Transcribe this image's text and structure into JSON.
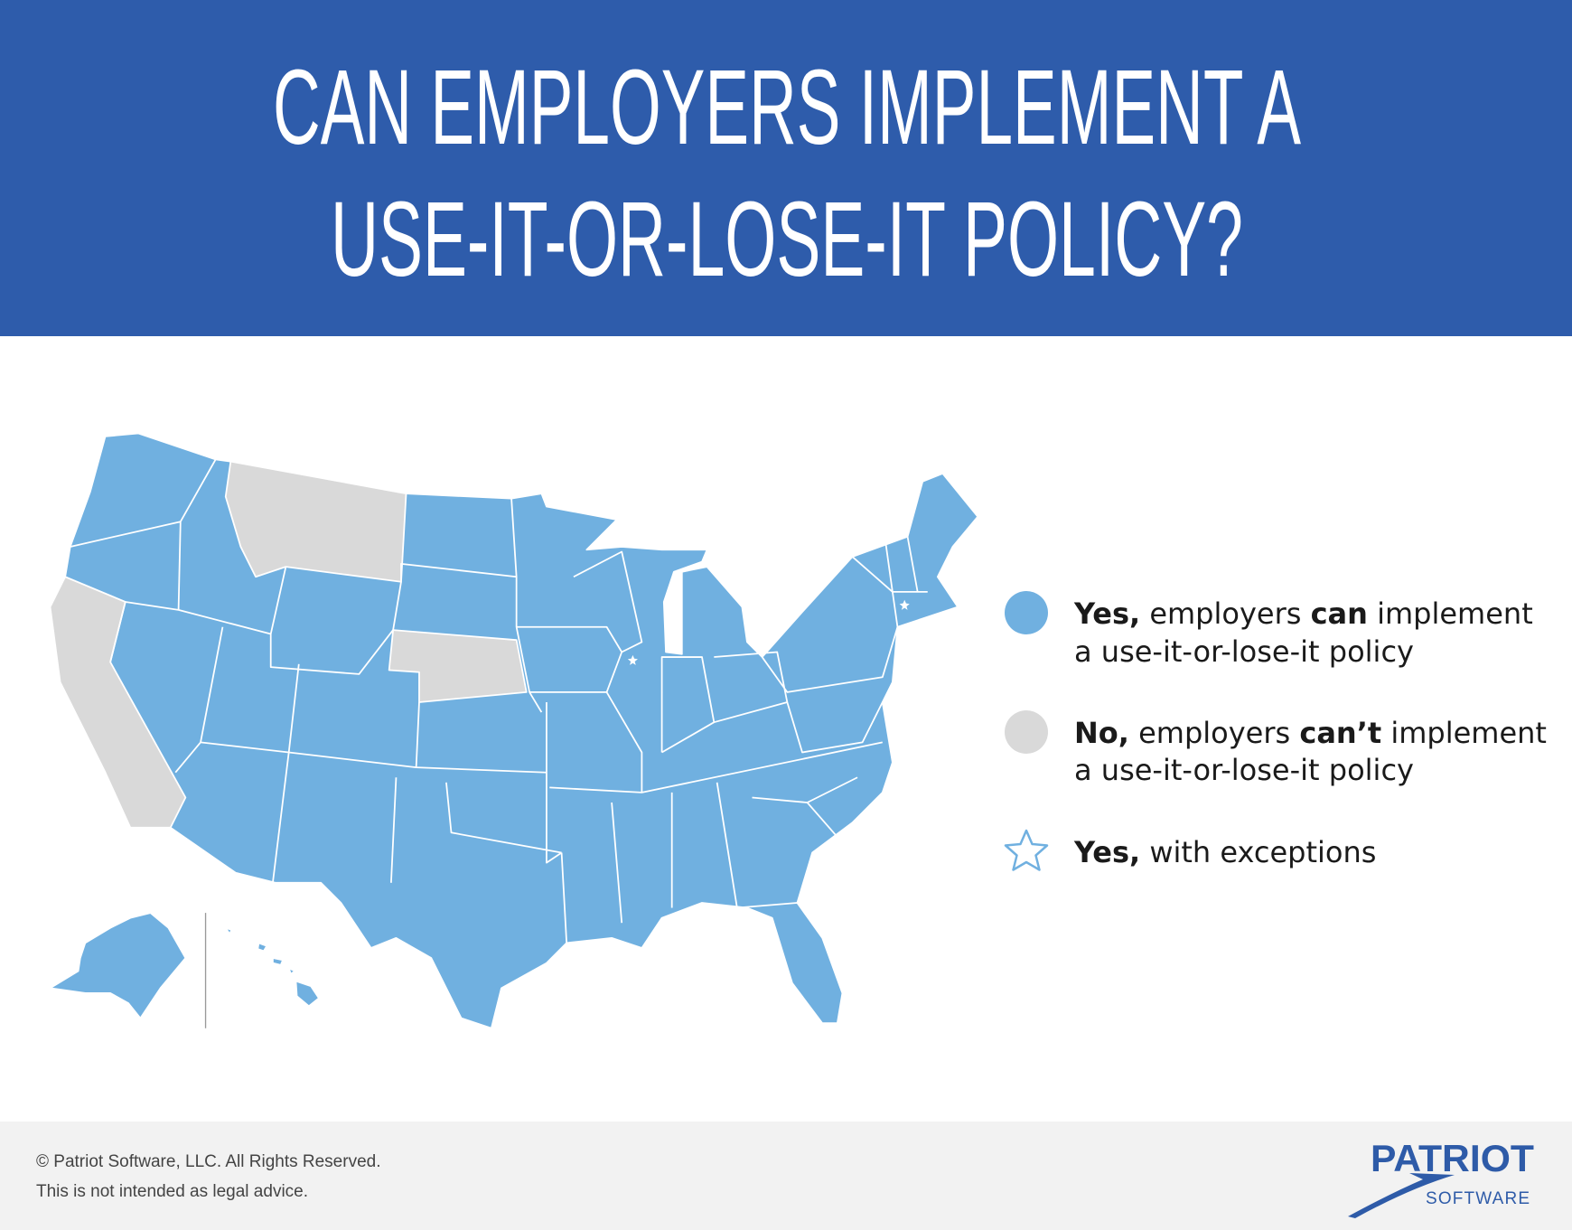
{
  "header": {
    "title": [
      "CAN EMPLOYERS IMPLEMENT A",
      "USE-IT-OR-LOSE-IT POLICY?"
    ]
  },
  "legend": {
    "items": [
      {
        "lines": [
          [
            {
              "text": "Yes,",
              "bold": true
            },
            {
              "text": " employers ",
              "bold": false
            },
            {
              "text": "can",
              "bold": true
            },
            {
              "text": " implement",
              "bold": false
            }
          ],
          [
            {
              "text": "a use-it-or-lose-it policy",
              "bold": false
            }
          ]
        ]
      },
      {
        "lines": [
          [
            {
              "text": "No,",
              "bold": true
            },
            {
              "text": " employers ",
              "bold": false
            },
            {
              "text": "can’t",
              "bold": true
            },
            {
              "text": " implement",
              "bold": false
            }
          ],
          [
            {
              "text": "a use-it-or-lose-it policy",
              "bold": false
            }
          ]
        ]
      },
      {
        "lines": [
          [
            {
              "text": "Yes,",
              "bold": true
            },
            {
              "text": " with exceptions",
              "bold": false
            }
          ]
        ]
      }
    ]
  },
  "footer": {
    "copyright": "© Patriot Software, LLC. All Rights Reserved.",
    "disclaimer": "This is not intended as legal advice.",
    "logo": {
      "name": "PATRIOT",
      "sub": "SOFTWARE"
    }
  }
}
